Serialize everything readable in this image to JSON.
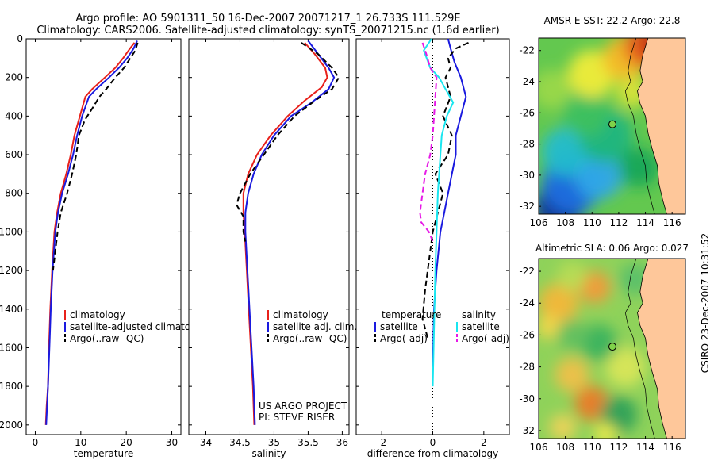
{
  "title_lines": [
    "Argo profile: AO 5901311_50 16-Dec-2007 20071217_1 26.733S 111.529E",
    "Climatology: CARS2006. Satellite-adjusted climatology: synTS_20071215.nc (1.6d earlier)"
  ],
  "side_stamp": "CSIRO 23-Dec-2007 10:31:52",
  "notes": [
    "US ARGO PROJECT",
    "PI: STEVE RISER"
  ],
  "colors": {
    "climatology": "#e8211b",
    "satellite": "#1a1adf",
    "argo": "#000000",
    "sal_satellite": "#19e6f0",
    "sal_argo": "#e619e6",
    "land": "#fec79a"
  },
  "chart_data": [
    {
      "type": "line",
      "name": "temperature-profile",
      "xlabel": "temperature",
      "ylabel": "",
      "xlim": [
        -2,
        32
      ],
      "ylim": [
        2050,
        0
      ],
      "xticks": [
        0,
        10,
        20,
        30
      ],
      "yticks": [
        0,
        200,
        400,
        600,
        800,
        1000,
        1200,
        1400,
        1600,
        1800,
        2000
      ],
      "legend": {
        "placement": "lower-right",
        "entries": [
          "climatology",
          "satellite-adjusted climatology",
          "Argo(..raw -QC)"
        ]
      },
      "series": [
        {
          "name": "climatology",
          "color": "climatology",
          "dash": "none",
          "x": [
            21.8,
            20.8,
            19.3,
            17.6,
            15.3,
            12.5,
            11.0,
            9.8,
            8.6,
            7.8,
            6.8,
            5.6,
            4.8,
            4.2,
            3.7,
            3.3,
            3.0,
            2.8,
            2.5,
            2.3
          ],
          "y": [
            20,
            50,
            100,
            150,
            200,
            260,
            300,
            400,
            500,
            600,
            700,
            800,
            900,
            1000,
            1200,
            1400,
            1600,
            1800,
            1900,
            2000
          ]
        },
        {
          "name": "satellite-adjusted climatology",
          "color": "satellite",
          "dash": "none",
          "x": [
            22.4,
            21.6,
            20.2,
            18.4,
            16.2,
            13.4,
            11.8,
            10.3,
            9.2,
            8.3,
            7.2,
            5.9,
            5.0,
            4.4,
            3.8,
            3.4,
            3.1,
            2.8,
            2.6,
            2.4
          ],
          "y": [
            10,
            50,
            100,
            150,
            200,
            260,
            300,
            400,
            500,
            600,
            700,
            800,
            900,
            1000,
            1200,
            1400,
            1600,
            1800,
            1900,
            2000
          ]
        },
        {
          "name": "Argo(..raw -QC)",
          "color": "argo",
          "dash": "dash",
          "x": [
            22.5,
            22.0,
            20.9,
            19.5,
            17.6,
            15.6,
            14.1,
            12.8,
            10.9,
            9.6,
            9.0,
            8.1,
            7.0,
            5.6,
            4.9,
            4.4,
            3.9
          ],
          "y": [
            20,
            60,
            100,
            150,
            200,
            260,
            300,
            350,
            420,
            500,
            600,
            700,
            800,
            900,
            1000,
            1100,
            1200
          ]
        }
      ]
    },
    {
      "type": "line",
      "name": "salinity-profile",
      "xlabel": "salinity",
      "ylabel": "",
      "xlim": [
        33.75,
        36.1
      ],
      "ylim": [
        2050,
        0
      ],
      "xticks": [
        34,
        34.5,
        35,
        35.5,
        36
      ],
      "yticks": [
        0,
        200,
        400,
        600,
        800,
        1000,
        1200,
        1400,
        1600,
        1800,
        2000
      ],
      "legend": {
        "placement": "lower-right",
        "entries": [
          "climatology",
          "satellite adj. clim.",
          "Argo(..raw -QC)"
        ]
      },
      "series": [
        {
          "name": "climatology",
          "color": "climatology",
          "dash": "none",
          "x": [
            35.45,
            35.6,
            35.75,
            35.78,
            35.7,
            35.45,
            35.2,
            34.95,
            34.75,
            34.62,
            34.55,
            34.55,
            34.57,
            34.6,
            34.63,
            34.66,
            34.69,
            34.71
          ],
          "y": [
            20,
            80,
            150,
            200,
            250,
            320,
            400,
            500,
            600,
            700,
            800,
            900,
            1000,
            1200,
            1400,
            1600,
            1800,
            2000
          ]
        },
        {
          "name": "satellite adj. clim.",
          "color": "satellite",
          "dash": "none",
          "x": [
            35.5,
            35.65,
            35.8,
            35.88,
            35.8,
            35.55,
            35.25,
            35.0,
            34.82,
            34.7,
            34.62,
            34.58,
            34.58,
            34.61,
            34.64,
            34.67,
            34.7,
            34.72
          ],
          "y": [
            10,
            80,
            150,
            200,
            260,
            330,
            400,
            500,
            600,
            700,
            800,
            900,
            1000,
            1200,
            1400,
            1600,
            1800,
            2000
          ]
        },
        {
          "name": "Argo(..raw -QC)",
          "color": "argo",
          "dash": "dash",
          "x": [
            35.4,
            35.65,
            35.85,
            35.95,
            35.85,
            35.6,
            35.3,
            35.05,
            34.85,
            34.65,
            34.5,
            34.45,
            34.55,
            34.55,
            34.58
          ],
          "y": [
            20,
            80,
            150,
            200,
            260,
            320,
            400,
            500,
            600,
            700,
            800,
            860,
            920,
            1000,
            1050
          ]
        }
      ]
    },
    {
      "type": "line",
      "name": "difference-profile",
      "xlabel": "difference from climatology",
      "ylabel": "",
      "xlim": [
        -3,
        3
      ],
      "ylim": [
        2050,
        0
      ],
      "xticks": [
        -2,
        0,
        2
      ],
      "yticks": [
        0,
        200,
        400,
        600,
        800,
        1000,
        1200,
        1400,
        1600,
        1800,
        2000
      ],
      "zero_line": true,
      "legend": {
        "placement": "lower-center",
        "groups": [
          "temperature",
          "salinity"
        ],
        "entries": [
          "satellite",
          "Argo(-adj)",
          "satellite",
          "Argo(-adj)"
        ]
      },
      "series": [
        {
          "name": "temperature satellite",
          "color": "satellite",
          "dash": "none",
          "x": [
            0.6,
            0.7,
            0.85,
            1.1,
            1.3,
            1.1,
            0.9,
            0.9,
            0.75,
            0.6,
            0.45,
            0.3,
            0.15,
            0.05,
            0.0
          ],
          "y": [
            0,
            50,
            120,
            200,
            300,
            400,
            500,
            600,
            700,
            800,
            900,
            1000,
            1200,
            1400,
            1700
          ]
        },
        {
          "name": "temperature Argo(-adj)",
          "color": "argo",
          "dash": "dash",
          "x": [
            1.4,
            0.9,
            0.6,
            0.7,
            0.5,
            0.7,
            0.4,
            0.75,
            0.6,
            0.1,
            0.4,
            0.2,
            0.0,
            -0.1,
            -0.3,
            -0.4,
            -0.2
          ],
          "y": [
            20,
            50,
            100,
            150,
            200,
            300,
            400,
            500,
            600,
            700,
            800,
            900,
            1000,
            1100,
            1300,
            1450,
            1550
          ]
        },
        {
          "name": "salinity satellite",
          "color": "sal_satellite",
          "dash": "none",
          "x": [
            -0.05,
            -0.35,
            -0.1,
            0.25,
            0.5,
            0.8,
            0.55,
            0.35,
            0.3,
            0.2,
            0.15,
            0.1,
            0.05,
            0.0
          ],
          "y": [
            0,
            60,
            150,
            200,
            260,
            330,
            400,
            500,
            600,
            800,
            1000,
            1200,
            1500,
            1800
          ]
        },
        {
          "name": "salinity Argo(-adj)",
          "color": "sal_argo",
          "dash": "dash",
          "x": [
            -0.4,
            -0.25,
            -0.1,
            0.15,
            0.1,
            0.05,
            0.0,
            -0.1,
            -0.3,
            -0.4,
            -0.5,
            -0.45,
            -0.15,
            0.0
          ],
          "y": [
            20,
            80,
            150,
            200,
            300,
            400,
            500,
            600,
            700,
            800,
            900,
            950,
            1000,
            1050
          ]
        }
      ]
    },
    {
      "type": "heatmap",
      "name": "sst-map",
      "title": "AMSR-E SST: 22.2  Argo: 22.8",
      "xlim": [
        106,
        117
      ],
      "ylim": [
        -32.5,
        -21.2
      ],
      "xticks": [
        106,
        108,
        110,
        112,
        114,
        116
      ],
      "yticks": [
        -22,
        -24,
        -26,
        -28,
        -30,
        -32
      ],
      "argo_position": [
        111.53,
        -26.73
      ],
      "blobs": [
        {
          "x": 107.5,
          "y": -32.0,
          "r": 1.8,
          "color": "#0b2d9a"
        },
        {
          "x": 108.5,
          "y": -30.5,
          "r": 2.3,
          "color": "#1d6fe0"
        },
        {
          "x": 110.5,
          "y": -30.0,
          "r": 1.8,
          "color": "#2ea8e8"
        },
        {
          "x": 108.0,
          "y": -28.5,
          "r": 1.8,
          "color": "#25bccd"
        },
        {
          "x": 111.0,
          "y": -27.5,
          "r": 2.0,
          "color": "#1fb580"
        },
        {
          "x": 109.5,
          "y": -26.0,
          "r": 1.8,
          "color": "#3cc060"
        },
        {
          "x": 107.0,
          "y": -24.5,
          "r": 1.5,
          "color": "#9ad84a"
        },
        {
          "x": 110.0,
          "y": -23.5,
          "r": 1.8,
          "color": "#f0ec39"
        },
        {
          "x": 112.5,
          "y": -22.5,
          "r": 1.7,
          "color": "#f8b928"
        },
        {
          "x": 114.0,
          "y": -21.7,
          "r": 1.6,
          "color": "#e55a1c"
        },
        {
          "x": 115.0,
          "y": -21.5,
          "r": 1.2,
          "color": "#b41d10"
        },
        {
          "x": 113.0,
          "y": -24.7,
          "r": 1.2,
          "color": "#d9e43a"
        },
        {
          "x": 113.5,
          "y": -29.5,
          "r": 1.5,
          "color": "#19a65a"
        }
      ],
      "base_color": "#63c84f",
      "coast": [
        [
          114.2,
          -21.2
        ],
        [
          113.8,
          -22.3
        ],
        [
          113.6,
          -23.3
        ],
        [
          113.8,
          -24.0
        ],
        [
          113.4,
          -24.6
        ],
        [
          113.6,
          -25.4
        ],
        [
          114.0,
          -26.2
        ],
        [
          114.2,
          -27.3
        ],
        [
          114.5,
          -28.3
        ],
        [
          114.9,
          -29.4
        ],
        [
          115.0,
          -30.5
        ],
        [
          115.3,
          -31.6
        ],
        [
          115.6,
          -32.5
        ]
      ],
      "land_color": "land"
    },
    {
      "type": "heatmap",
      "name": "sla-map",
      "title": "Altimetric SLA: 0.06  Argo: 0.027",
      "xlim": [
        106,
        117
      ],
      "ylim": [
        -32.5,
        -21.2
      ],
      "xticks": [
        106,
        108,
        110,
        112,
        114,
        116
      ],
      "yticks": [
        -22,
        -24,
        -26,
        -28,
        -30,
        -32
      ],
      "argo_position": [
        111.53,
        -26.73
      ],
      "blobs": [
        {
          "x": 107.5,
          "y": -24.0,
          "r": 1.5,
          "color": "#f3b63a"
        },
        {
          "x": 110.2,
          "y": -23.0,
          "r": 1.2,
          "color": "#f39a3a"
        },
        {
          "x": 106.8,
          "y": -25.5,
          "r": 0.9,
          "color": "#f7d84a"
        },
        {
          "x": 108.5,
          "y": -28.5,
          "r": 1.3,
          "color": "#f0c04a"
        },
        {
          "x": 110.0,
          "y": -30.3,
          "r": 1.3,
          "color": "#ec7a28"
        },
        {
          "x": 107.8,
          "y": -31.8,
          "r": 1.0,
          "color": "#f0d35a"
        },
        {
          "x": 112.5,
          "y": -28.0,
          "r": 1.5,
          "color": "#d9e65a"
        },
        {
          "x": 110.5,
          "y": -26.5,
          "r": 1.4,
          "color": "#38b35e"
        },
        {
          "x": 108.5,
          "y": -26.0,
          "r": 1.2,
          "color": "#62c05f"
        },
        {
          "x": 113.2,
          "y": -22.5,
          "r": 1.2,
          "color": "#5ac06a"
        },
        {
          "x": 112.0,
          "y": -31.0,
          "r": 1.4,
          "color": "#2aa05a"
        },
        {
          "x": 111.0,
          "y": -32.2,
          "r": 0.8,
          "color": "#f4ee4c"
        },
        {
          "x": 108.5,
          "y": -22.3,
          "r": 1.1,
          "color": "#b9dc55"
        }
      ],
      "base_color": "#8fd25a",
      "coast": [
        [
          114.2,
          -21.2
        ],
        [
          113.8,
          -22.3
        ],
        [
          113.6,
          -23.3
        ],
        [
          113.8,
          -24.0
        ],
        [
          113.4,
          -24.6
        ],
        [
          113.6,
          -25.4
        ],
        [
          114.0,
          -26.2
        ],
        [
          114.2,
          -27.3
        ],
        [
          114.5,
          -28.3
        ],
        [
          114.9,
          -29.4
        ],
        [
          115.0,
          -30.5
        ],
        [
          115.3,
          -31.6
        ],
        [
          115.6,
          -32.5
        ]
      ],
      "land_color": "land"
    }
  ]
}
